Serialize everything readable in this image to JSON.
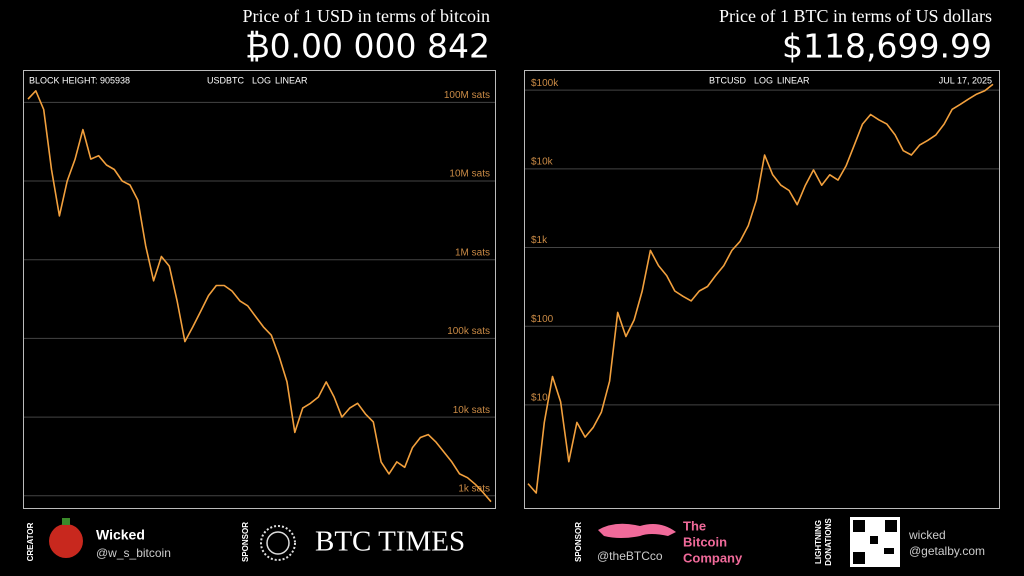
{
  "chart_data": [
    {
      "type": "line",
      "title": "Price of 1 USD in terms of bitcoin",
      "headline": "₿0.00 000 842",
      "info": "BLOCK HEIGHT: 905938",
      "ticker": "USDBTC",
      "scale_options": [
        "LOG",
        "LINEAR"
      ],
      "log_scale": true,
      "grid": true,
      "ylim": [
        700,
        250000000
      ],
      "yticks": [
        {
          "value": 100000000,
          "label": "100M sats"
        },
        {
          "value": 10000000,
          "label": "10M sats"
        },
        {
          "value": 1000000,
          "label": "1M sats"
        },
        {
          "value": 100000,
          "label": "100k sats"
        },
        {
          "value": 10000,
          "label": "10k sats"
        },
        {
          "value": 1000,
          "label": "1k sats"
        }
      ],
      "series": [
        {
          "color": "#f2a03d",
          "values": [
            110000000,
            140000000,
            81000000,
            14000000,
            3600000,
            10000000,
            19000000,
            45000000,
            19000000,
            21000000,
            16000000,
            14000000,
            10000000,
            8900000,
            5700000,
            1500000,
            540000,
            1100000,
            830000,
            300000,
            91000,
            140000,
            220000,
            350000,
            470000,
            470000,
            400000,
            300000,
            260000,
            190000,
            140000,
            110000,
            59000,
            28000,
            6400,
            13000,
            15000,
            18000,
            28000,
            18000,
            10000,
            13000,
            15000,
            11000,
            8700,
            2700,
            1900,
            2700,
            2300,
            4100,
            5500,
            6000,
            4800,
            3600,
            2700,
            1900,
            1700,
            1400,
            1100,
            842
          ]
        }
      ]
    },
    {
      "type": "line",
      "title": "Price of 1 BTC in terms of US dollars",
      "headline": "$118,699.99",
      "info": "JUL 17, 2025",
      "ticker": "BTCUSD",
      "scale_options": [
        "LOG",
        "LINEAR"
      ],
      "log_scale": true,
      "grid": true,
      "ylim": [
        0.49,
        175000
      ],
      "yticks": [
        {
          "value": 100000,
          "label": "$100k"
        },
        {
          "value": 10000,
          "label": "$10k"
        },
        {
          "value": 1000,
          "label": "$1k"
        },
        {
          "value": 100,
          "label": "$100"
        },
        {
          "value": 10,
          "label": "$10"
        }
      ],
      "series": [
        {
          "color": "#f2a03d",
          "values": [
            1.0,
            0.76,
            6.0,
            23,
            11,
            1.9,
            6.0,
            3.9,
            5.2,
            8.1,
            20,
            150,
            74,
            120,
            280,
            920,
            590,
            440,
            280,
            240,
            210,
            280,
            320,
            440,
            590,
            920,
            1200,
            1900,
            4000,
            15000,
            8400,
            6200,
            5300,
            3500,
            6200,
            9700,
            6200,
            8400,
            7200,
            11000,
            20000,
            37000,
            49000,
            42000,
            37000,
            27000,
            17000,
            15000,
            20000,
            23000,
            27000,
            37000,
            57000,
            66000,
            77000,
            89000,
            98000,
            118699.99
          ]
        }
      ]
    }
  ],
  "footer": {
    "creator_label": "CREATOR",
    "creator_name": "Wicked",
    "creator_handle": "@w_s_bitcoin",
    "sponsor_label": "SPONSOR",
    "sponsor_name": "BTC TIMES",
    "sponsor2_label": "SPONSOR",
    "sponsor2_name": [
      "The",
      "Bitcoin",
      "Company"
    ],
    "sponsor2_handle": "@theBTCco",
    "donations_label": [
      "LIGHTNING",
      "DONATIONS"
    ],
    "donations_name": "wicked",
    "donations_handle": "@getalby.com"
  }
}
